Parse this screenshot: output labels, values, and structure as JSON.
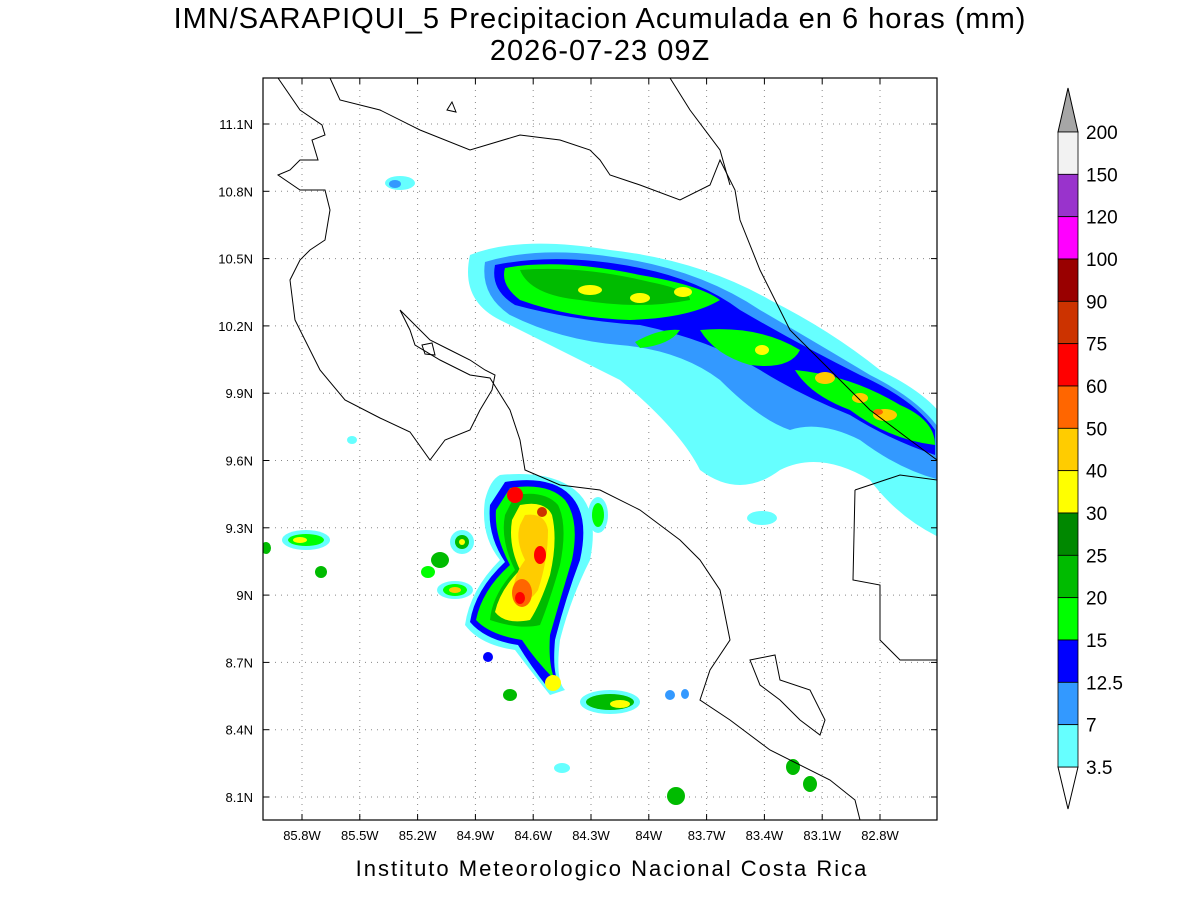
{
  "header": {
    "title": "IMN/SARAPIQUI_5 Precipitacion Acumulada en 6 horas (mm)",
    "subtitle": "2026-07-23 09Z"
  },
  "map": {
    "lon_ticks": [
      "85.8W",
      "85.5W",
      "85.2W",
      "84.9W",
      "84.6W",
      "84.3W",
      "84W",
      "83.7W",
      "83.4W",
      "83.1W",
      "82.8W"
    ],
    "lat_ticks": [
      "11.1N",
      "10.8N",
      "10.5N",
      "10.2N",
      "9.9N",
      "9.6N",
      "9.3N",
      "9N",
      "8.7N",
      "8.4N",
      "8.1N"
    ]
  },
  "colorbar": {
    "labels": [
      "200",
      "150",
      "120",
      "100",
      "90",
      "75",
      "60",
      "50",
      "40",
      "30",
      "25",
      "20",
      "15",
      "12.5",
      "7",
      "3.5"
    ],
    "colors": [
      "#f2f2f2",
      "#9933cc",
      "#ff00ff",
      "#990000",
      "#cc3300",
      "#ff0000",
      "#ff6600",
      "#ffcc00",
      "#ffff00",
      "#008800",
      "#00bb00",
      "#00ff00",
      "#0000ff",
      "#3399ff",
      "#66ffff"
    ],
    "over_color": "#a6a6a6",
    "under_color": "#ffffff"
  },
  "footer": "Instituto Meteorologico Nacional Costa Rica"
}
